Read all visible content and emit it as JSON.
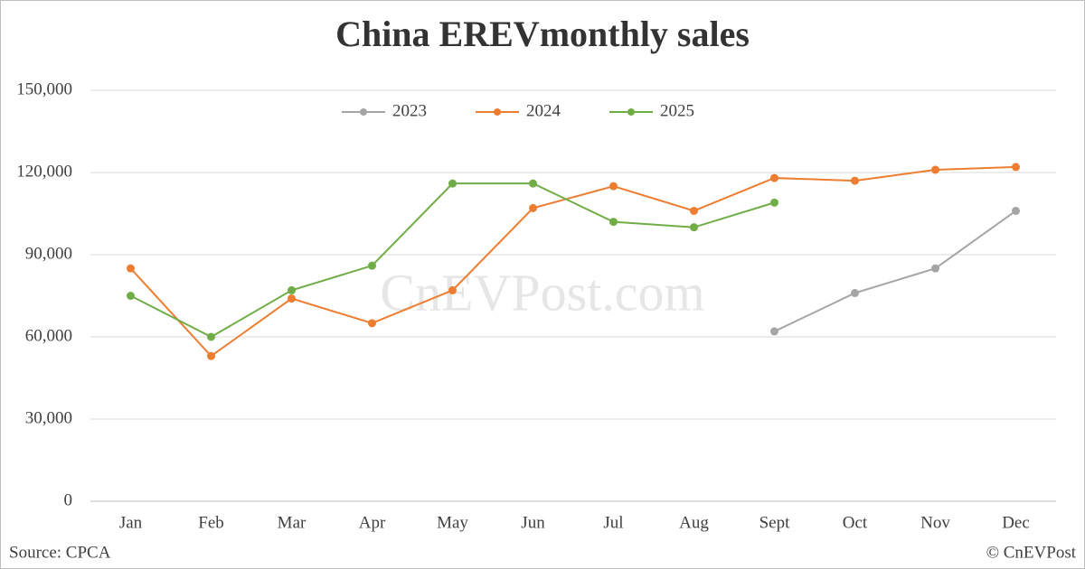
{
  "chart_data": {
    "type": "line",
    "title": "China EREVmonthly sales",
    "watermark": "CnEVPost.com",
    "source": "Source: CPCA",
    "copyright": "© CnEVPost",
    "categories": [
      "Jan",
      "Feb",
      "Mar",
      "Apr",
      "May",
      "Jun",
      "Jul",
      "Aug",
      "Sept",
      "Oct",
      "Nov",
      "Dec"
    ],
    "series": [
      {
        "name": "2023",
        "color": "#a5a5a5",
        "values": [
          null,
          null,
          null,
          null,
          null,
          null,
          null,
          null,
          62000,
          76000,
          85000,
          106000
        ]
      },
      {
        "name": "2024",
        "color": "#ed7d31",
        "values": [
          85000,
          53000,
          74000,
          65000,
          77000,
          107000,
          115000,
          106000,
          118000,
          117000,
          121000,
          122000
        ]
      },
      {
        "name": "2025",
        "color": "#70ad47",
        "values": [
          75000,
          60000,
          77000,
          86000,
          116000,
          116000,
          102000,
          100000,
          109000,
          null,
          null,
          null
        ]
      }
    ],
    "ylim": [
      0,
      150000
    ],
    "yticks": [
      0,
      {
        "value": 30000,
        "label": "30,000"
      },
      {
        "value": 60000,
        "label": "60,000"
      },
      {
        "value": 90000,
        "label": "90,000"
      },
      {
        "value": 120000,
        "label": "120,000"
      },
      {
        "value": 150000,
        "label": "150,000"
      }
    ],
    "grid": true,
    "legend": "top"
  }
}
